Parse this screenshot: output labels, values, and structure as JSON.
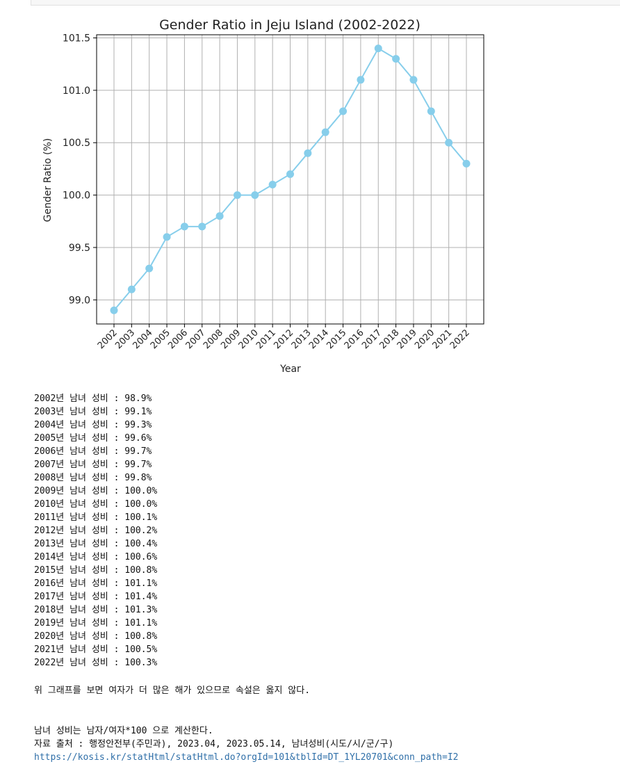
{
  "chart_data": {
    "type": "line",
    "title": "Gender Ratio in Jeju Island (2002-2022)",
    "xlabel": "Year",
    "ylabel": "Gender Ratio (%)",
    "x": [
      "2002",
      "2003",
      "2004",
      "2005",
      "2006",
      "2007",
      "2008",
      "2009",
      "2010",
      "2011",
      "2012",
      "2013",
      "2014",
      "2015",
      "2016",
      "2017",
      "2018",
      "2019",
      "2020",
      "2021",
      "2022"
    ],
    "values": [
      98.9,
      99.1,
      99.3,
      99.6,
      99.7,
      99.7,
      99.8,
      100.0,
      100.0,
      100.1,
      100.2,
      100.4,
      100.6,
      100.8,
      101.1,
      101.4,
      101.3,
      101.1,
      100.8,
      100.5,
      100.3
    ],
    "ylim": [
      98.77,
      101.53
    ],
    "yticks": [
      "99.0",
      "99.5",
      "100.0",
      "100.5",
      "101.0",
      "101.5"
    ],
    "grid": true,
    "color": "#87ceeb"
  },
  "output": {
    "stats": [
      "2002년 남녀 성비 : 98.9%",
      "2003년 남녀 성비 : 99.1%",
      "2004년 남녀 성비 : 99.3%",
      "2005년 남녀 성비 : 99.6%",
      "2006년 남녀 성비 : 99.7%",
      "2007년 남녀 성비 : 99.7%",
      "2008년 남녀 성비 : 99.8%",
      "2009년 남녀 성비 : 100.0%",
      "2010년 남녀 성비 : 100.0%",
      "2011년 남녀 성비 : 100.1%",
      "2012년 남녀 성비 : 100.2%",
      "2013년 남녀 성비 : 100.4%",
      "2014년 남녀 성비 : 100.6%",
      "2015년 남녀 성비 : 100.8%",
      "2016년 남녀 성비 : 101.1%",
      "2017년 남녀 성비 : 101.4%",
      "2018년 남녀 성비 : 101.3%",
      "2019년 남녀 성비 : 101.1%",
      "2020년 남녀 성비 : 100.8%",
      "2021년 남녀 성비 : 100.5%",
      "2022년 남녀 성비 : 100.3%"
    ],
    "conclusion": "위 그래프를 보면 여자가 더 많은 해가 있으므로 속설은 옳지 않다.",
    "formula_note": "남녀 성비는 남자/여자*100 으로 계산한다.",
    "source": "자료 출처 : 행정안전부(주민과), 2023.04, 2023.05.14, 남녀성비(시도/시/군/구)",
    "source_url": "https://kosis.kr/statHtml/statHtml.do?orgId=101&tblId=DT_1YL20701&conn_path=I2"
  }
}
